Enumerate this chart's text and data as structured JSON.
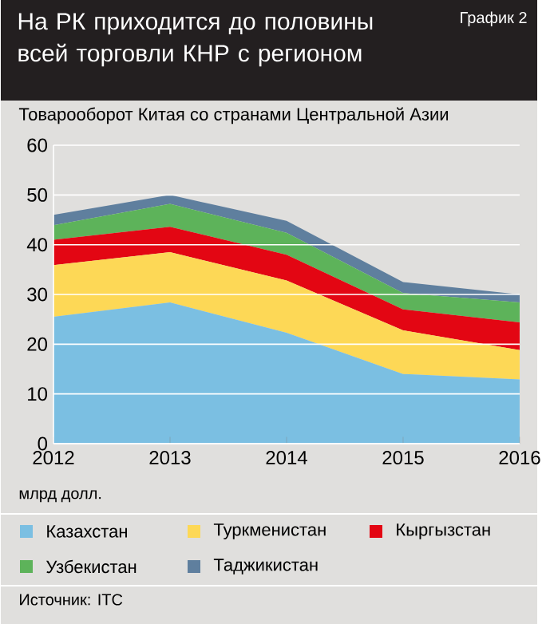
{
  "chart_data": {
    "type": "area",
    "title": "На РК приходится до половины всей торговли КНР с регионом",
    "subtitle": "Товарооборот Китая со странами Центральной Азии",
    "ylabel": "млрд долл.",
    "annotations": [
      "График 2",
      "Источник: ITC"
    ],
    "x": [
      2012,
      2013,
      2014,
      2015,
      2016
    ],
    "xlim": [
      2012,
      2016
    ],
    "xticks": [
      2012,
      2013,
      2014,
      2015,
      2016
    ],
    "ylim": [
      0,
      60
    ],
    "yticks": [
      0,
      10,
      20,
      30,
      40,
      50,
      60
    ],
    "grid": "y",
    "stacked": true,
    "legend": "bottom",
    "series": [
      {
        "name": "Казахстан",
        "color": "#7bbfe2",
        "values": [
          25.5,
          28.4,
          22.3,
          14.0,
          12.9
        ]
      },
      {
        "name": "Туркменистан",
        "color": "#fdd856",
        "values": [
          10.4,
          10.1,
          10.5,
          8.8,
          5.9
        ]
      },
      {
        "name": "Кыргызстан",
        "color": "#e30613",
        "values": [
          5.1,
          5.1,
          5.2,
          4.2,
          5.6
        ]
      },
      {
        "name": "Узбекистан",
        "color": "#5db35a",
        "values": [
          2.9,
          4.6,
          4.4,
          3.3,
          4.0
        ]
      },
      {
        "name": "Таджикистан",
        "color": "#5f7f9e",
        "values": [
          2.1,
          1.8,
          2.4,
          2.2,
          1.6
        ]
      }
    ]
  }
}
